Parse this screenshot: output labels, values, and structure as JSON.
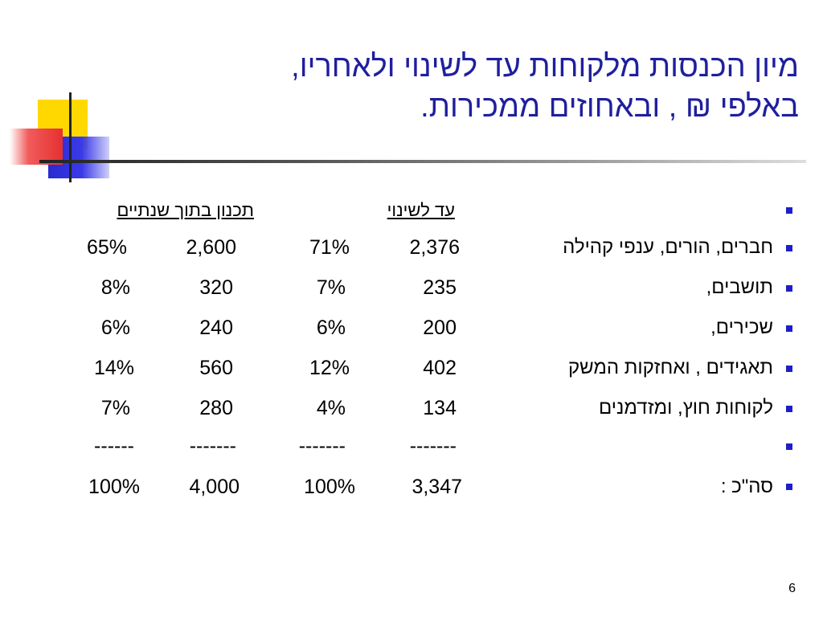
{
  "title": {
    "line1": "מיון הכנסות מלקוחות עד לשינוי ולאחריו,",
    "line2": "באלפי ₪ , ובאחוזים ממכירות."
  },
  "table": {
    "header_until_change": "עד לשינוי",
    "header_plan": "תכנון בתוך שנתיים",
    "rows": [
      {
        "label": "חברים, הורים, ענפי קהילה",
        "until_val": "2,376",
        "until_pct": "71%",
        "plan_val": "2,600",
        "plan_pct": "65%"
      },
      {
        "label": "תושבים,",
        "until_val": "235",
        "until_pct": "7%",
        "plan_val": "320",
        "plan_pct": "8%"
      },
      {
        "label": "שכירים,",
        "until_val": "200",
        "until_pct": "6%",
        "plan_val": "240",
        "plan_pct": "6%"
      },
      {
        "label": "תאגידים , ואחזקות המשק",
        "until_val": "402",
        "until_pct": "12%",
        "plan_val": "560",
        "plan_pct": "14%"
      },
      {
        "label": "לקוחות חוץ, ומזדמנים",
        "until_val": "134",
        "until_pct": "4%",
        "plan_val": "280",
        "plan_pct": "7%"
      }
    ],
    "separator": {
      "until_val": "-------",
      "until_pct": "-------",
      "plan_val": "-------",
      "plan_pct": "------"
    },
    "total": {
      "label": "סה\"כ :",
      "until_val": "3,347",
      "until_pct": "100%",
      "plan_val": "4,000",
      "plan_pct": "100%"
    }
  },
  "footer": {
    "page_number": "6"
  },
  "colors": {
    "title": "#1f1f9e",
    "bullet": "#1e1ec8"
  }
}
